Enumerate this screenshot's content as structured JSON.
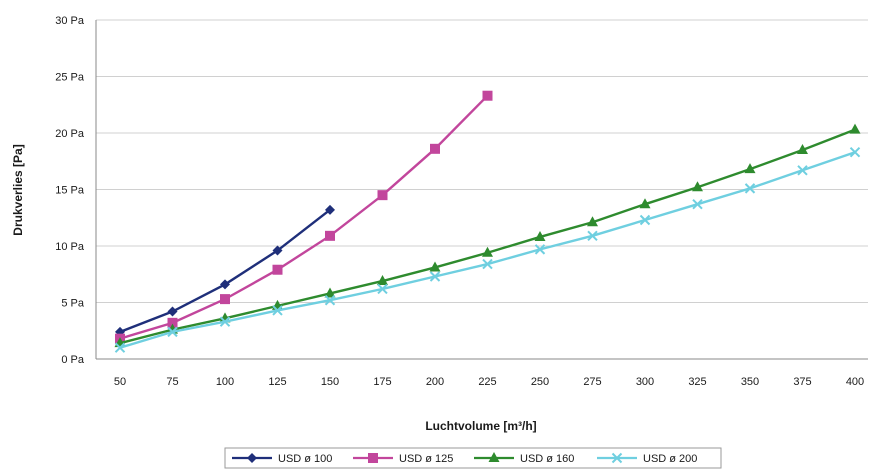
{
  "chart_data": {
    "type": "line",
    "title": "",
    "xlabel": "Luchtvolume [m³/h]",
    "ylabel": "Drukverlies [Pa]",
    "x_ticks": [
      "50",
      "75",
      "100",
      "125",
      "150",
      "175",
      "200",
      "225",
      "250",
      "275",
      "300",
      "325",
      "350",
      "375",
      "400"
    ],
    "y_ticks": [
      "0 Pa",
      "5 Pa",
      "10 Pa",
      "15 Pa",
      "20 Pa",
      "25 Pa",
      "30 Pa"
    ],
    "xlim": [
      50,
      400
    ],
    "ylim": [
      0,
      30
    ],
    "grid": "horizontal",
    "legend": "bottom",
    "series": [
      {
        "name": "USD ø 100",
        "color": "#1f2f7a",
        "marker": "diamond",
        "x": [
          50,
          75,
          100,
          125,
          150
        ],
        "y": [
          2.4,
          4.2,
          6.6,
          9.6,
          13.2
        ]
      },
      {
        "name": "USD ø 125",
        "color": "#c2469c",
        "marker": "square",
        "x": [
          50,
          75,
          100,
          125,
          150,
          175,
          200,
          225
        ],
        "y": [
          1.8,
          3.2,
          5.3,
          7.9,
          10.9,
          14.5,
          18.6,
          23.3
        ]
      },
      {
        "name": "USD ø 160",
        "color": "#2e8b2e",
        "marker": "triangle",
        "x": [
          50,
          75,
          100,
          125,
          150,
          175,
          200,
          225,
          250,
          275,
          300,
          325,
          350,
          375,
          400
        ],
        "y": [
          1.4,
          2.6,
          3.6,
          4.7,
          5.8,
          6.9,
          8.1,
          9.4,
          10.8,
          12.1,
          13.7,
          15.2,
          16.8,
          18.5,
          20.3
        ]
      },
      {
        "name": "USD ø 200",
        "color": "#6fcfe0",
        "marker": "x",
        "x": [
          50,
          75,
          100,
          125,
          150,
          175,
          200,
          225,
          250,
          275,
          300,
          325,
          350,
          375,
          400
        ],
        "y": [
          1.0,
          2.4,
          3.3,
          4.3,
          5.2,
          6.2,
          7.3,
          8.4,
          9.7,
          10.9,
          12.3,
          13.7,
          15.1,
          16.7,
          18.3
        ]
      }
    ]
  }
}
